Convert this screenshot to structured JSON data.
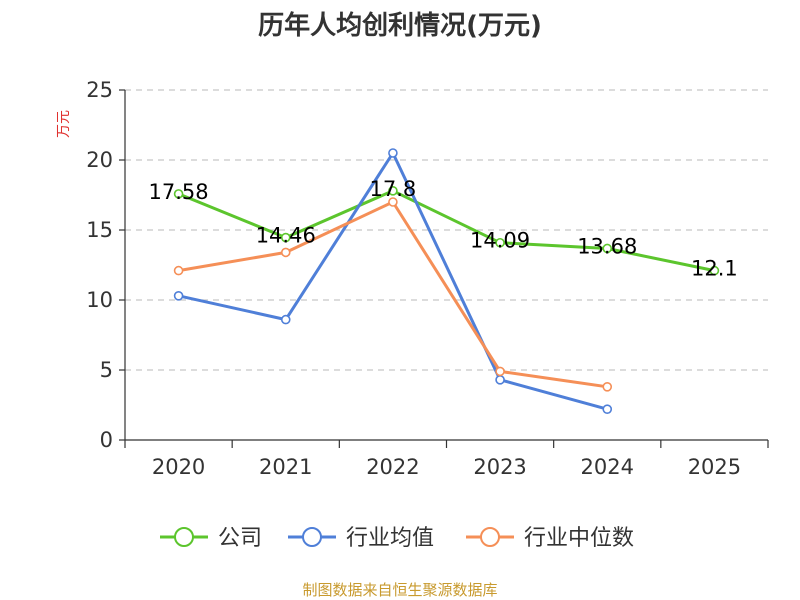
{
  "chart_data": {
    "type": "line",
    "title": "历年人均创利情况(万元)",
    "ylabel": "万元",
    "xlabel": "",
    "ylim": [
      0,
      25
    ],
    "yticks": [
      0,
      5,
      10,
      15,
      20,
      25
    ],
    "categories": [
      "2020",
      "2021",
      "2022",
      "2023",
      "2024",
      "2025"
    ],
    "grid": true,
    "series": [
      {
        "name": "公司",
        "color": "#5cc52d",
        "values": [
          17.58,
          14.46,
          17.8,
          14.09,
          13.68,
          12.1
        ],
        "labels": [
          "17.58",
          "14.46",
          "17.8",
          "14.09",
          "13.68",
          "12.1"
        ]
      },
      {
        "name": "行业均值",
        "color": "#4f7fd8",
        "values": [
          10.3,
          8.6,
          20.5,
          4.3,
          2.2,
          null
        ]
      },
      {
        "name": "行业中位数",
        "color": "#f58f57",
        "values": [
          12.1,
          13.4,
          17.0,
          4.9,
          3.8,
          null
        ]
      }
    ],
    "legend_position": "bottom",
    "source": "制图数据来自恒生聚源数据库"
  }
}
